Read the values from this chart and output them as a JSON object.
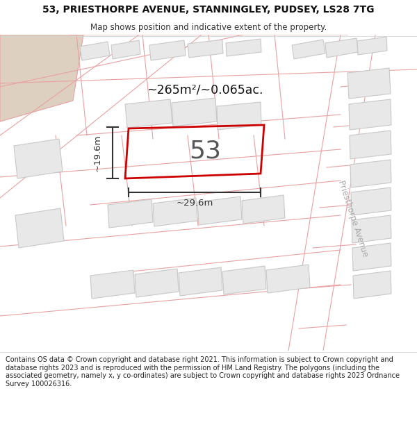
{
  "title_line1": "53, PRIESTHORPE AVENUE, STANNINGLEY, PUDSEY, LS28 7TG",
  "title_line2": "Map shows position and indicative extent of the property.",
  "footer": "Contains OS data © Crown copyright and database right 2021. This information is subject to Crown copyright and database rights 2023 and is reproduced with the permission of HM Land Registry. The polygons (including the associated geometry, namely x, y co-ordinates) are subject to Crown copyright and database rights 2023 Ordnance Survey 100026316.",
  "area_label": "~265m²/~0.065ac.",
  "property_number": "53",
  "dim_width": "~29.6m",
  "dim_height": "~19.6m",
  "street_label": "Priesthorpe Avenue",
  "map_bg": "#ffffff",
  "highlight_color": "#cc0000",
  "plot_outline_color": "#e8a0a0",
  "building_fill": "#e8e8e8",
  "building_outline": "#c8c8c8",
  "tan_fill": "#ddd0c0",
  "title_bg": "#ffffff",
  "footer_bg": "#ffffff",
  "dim_color": "#333333",
  "street_label_color": "#aaaaaa"
}
